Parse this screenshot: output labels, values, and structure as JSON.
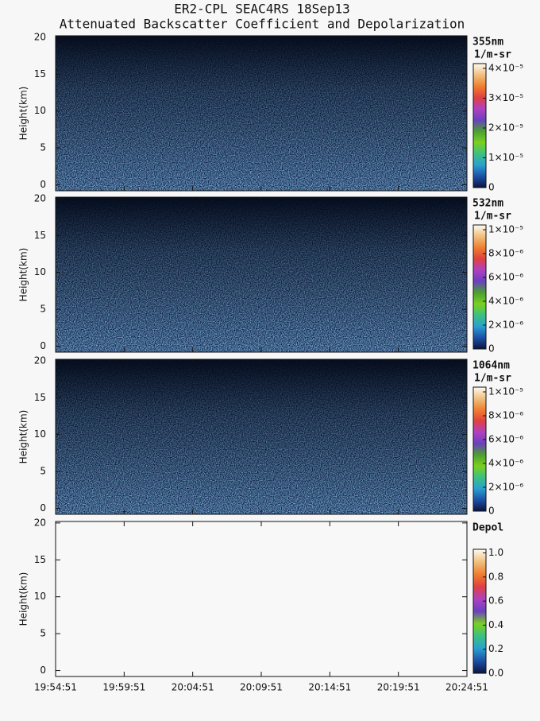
{
  "title": "ER2-CPL SEAC4RS 18Sep13",
  "subtitle": "Attenuated Backscatter Coefficient and Depolarization",
  "chart_data": [
    {
      "type": "heatmap",
      "ylabel": "Height(km)",
      "ylim": [
        -0.8,
        20.2
      ],
      "yticks": [
        0,
        5,
        10,
        15,
        20
      ],
      "xlim": [
        0,
        30
      ],
      "xticks": [
        0,
        5,
        10,
        15,
        20,
        25,
        30
      ],
      "background": "dark",
      "colorbar": {
        "label": "355nm",
        "units": "1/m-sr",
        "lim": [
          0,
          4.16e-05
        ],
        "ticks": [
          {
            "value": 0,
            "label": "0"
          },
          {
            "value": 1e-05,
            "label": "1×10⁻⁵"
          },
          {
            "value": 2e-05,
            "label": "2×10⁻⁵"
          },
          {
            "value": 3e-05,
            "label": "3×10⁻⁵"
          },
          {
            "value": 4e-05,
            "label": "4×10⁻⁵"
          }
        ],
        "colors": [
          "#0a1440",
          "#1d4fa6",
          "#2aa0d0",
          "#3cc080",
          "#7ad020",
          "#4aa030",
          "#6a40c0",
          "#b040c0",
          "#e04040",
          "#f08030",
          "#f0c080",
          "#fffaf0"
        ]
      }
    },
    {
      "type": "heatmap",
      "ylabel": "Height(km)",
      "ylim": [
        -0.8,
        20.2
      ],
      "yticks": [
        0,
        5,
        10,
        15,
        20
      ],
      "xlim": [
        0,
        30
      ],
      "xticks": [
        0,
        5,
        10,
        15,
        20,
        25,
        30
      ],
      "background": "dark",
      "colorbar": {
        "label": "532nm",
        "units": "1/m-sr",
        "lim": [
          0,
          1.04e-05
        ],
        "ticks": [
          {
            "value": 0,
            "label": "0"
          },
          {
            "value": 2e-06,
            "label": "2×10⁻⁶"
          },
          {
            "value": 4e-06,
            "label": "4×10⁻⁶"
          },
          {
            "value": 6e-06,
            "label": "6×10⁻⁶"
          },
          {
            "value": 8e-06,
            "label": "8×10⁻⁶"
          },
          {
            "value": 1e-05,
            "label": "1×10⁻⁵"
          }
        ],
        "colors": [
          "#0a1440",
          "#1d4fa6",
          "#2aa0d0",
          "#3cc080",
          "#7ad020",
          "#4aa030",
          "#6a40c0",
          "#b040c0",
          "#e04040",
          "#f08030",
          "#f0c080",
          "#fffaf0"
        ]
      }
    },
    {
      "type": "heatmap",
      "ylabel": "Height(km)",
      "ylim": [
        -0.8,
        20.2
      ],
      "yticks": [
        0,
        5,
        10,
        15,
        20
      ],
      "xlim": [
        0,
        30
      ],
      "xticks": [
        0,
        5,
        10,
        15,
        20,
        25,
        30
      ],
      "background": "dark",
      "colorbar": {
        "label": "1064nm",
        "units": "1/m-sr",
        "lim": [
          0,
          1.04e-05
        ],
        "ticks": [
          {
            "value": 0,
            "label": "0"
          },
          {
            "value": 2e-06,
            "label": "2×10⁻⁶"
          },
          {
            "value": 4e-06,
            "label": "4×10⁻⁶"
          },
          {
            "value": 6e-06,
            "label": "6×10⁻⁶"
          },
          {
            "value": 8e-06,
            "label": "8×10⁻⁶"
          },
          {
            "value": 1e-05,
            "label": "1×10⁻⁵"
          }
        ],
        "colors": [
          "#0a1440",
          "#1d4fa6",
          "#2aa0d0",
          "#3cc080",
          "#7ad020",
          "#4aa030",
          "#6a40c0",
          "#b040c0",
          "#e04040",
          "#f08030",
          "#f0c080",
          "#fffaf0"
        ]
      }
    },
    {
      "type": "heatmap",
      "ylabel": "Height(km)",
      "ylim": [
        -0.8,
        20.2
      ],
      "yticks": [
        0,
        5,
        10,
        15,
        20
      ],
      "xlim": [
        0,
        30
      ],
      "xticks": [
        {
          "value": 0,
          "label": "19:54:51"
        },
        {
          "value": 5,
          "label": "19:59:51"
        },
        {
          "value": 10,
          "label": "20:04:51"
        },
        {
          "value": 15,
          "label": "20:09:51"
        },
        {
          "value": 20,
          "label": "20:14:51"
        },
        {
          "value": 25,
          "label": "20:19:51"
        },
        {
          "value": 30,
          "label": "20:24:51"
        }
      ],
      "background": "light",
      "colorbar": {
        "label": "Depol",
        "lim": [
          0,
          1.03
        ],
        "ticks": [
          {
            "value": 0,
            "label": "0.0"
          },
          {
            "value": 0.2,
            "label": "0.2"
          },
          {
            "value": 0.4,
            "label": "0.4"
          },
          {
            "value": 0.6,
            "label": "0.6"
          },
          {
            "value": 0.8,
            "label": "0.8"
          },
          {
            "value": 1,
            "label": "1.0"
          }
        ],
        "colors": [
          "#0a1440",
          "#1d4fa6",
          "#2aa0d0",
          "#3cc080",
          "#7ad020",
          "#6a40c0",
          "#b040c0",
          "#e04040",
          "#f08030",
          "#f0c080",
          "#fffaf0"
        ]
      }
    }
  ]
}
